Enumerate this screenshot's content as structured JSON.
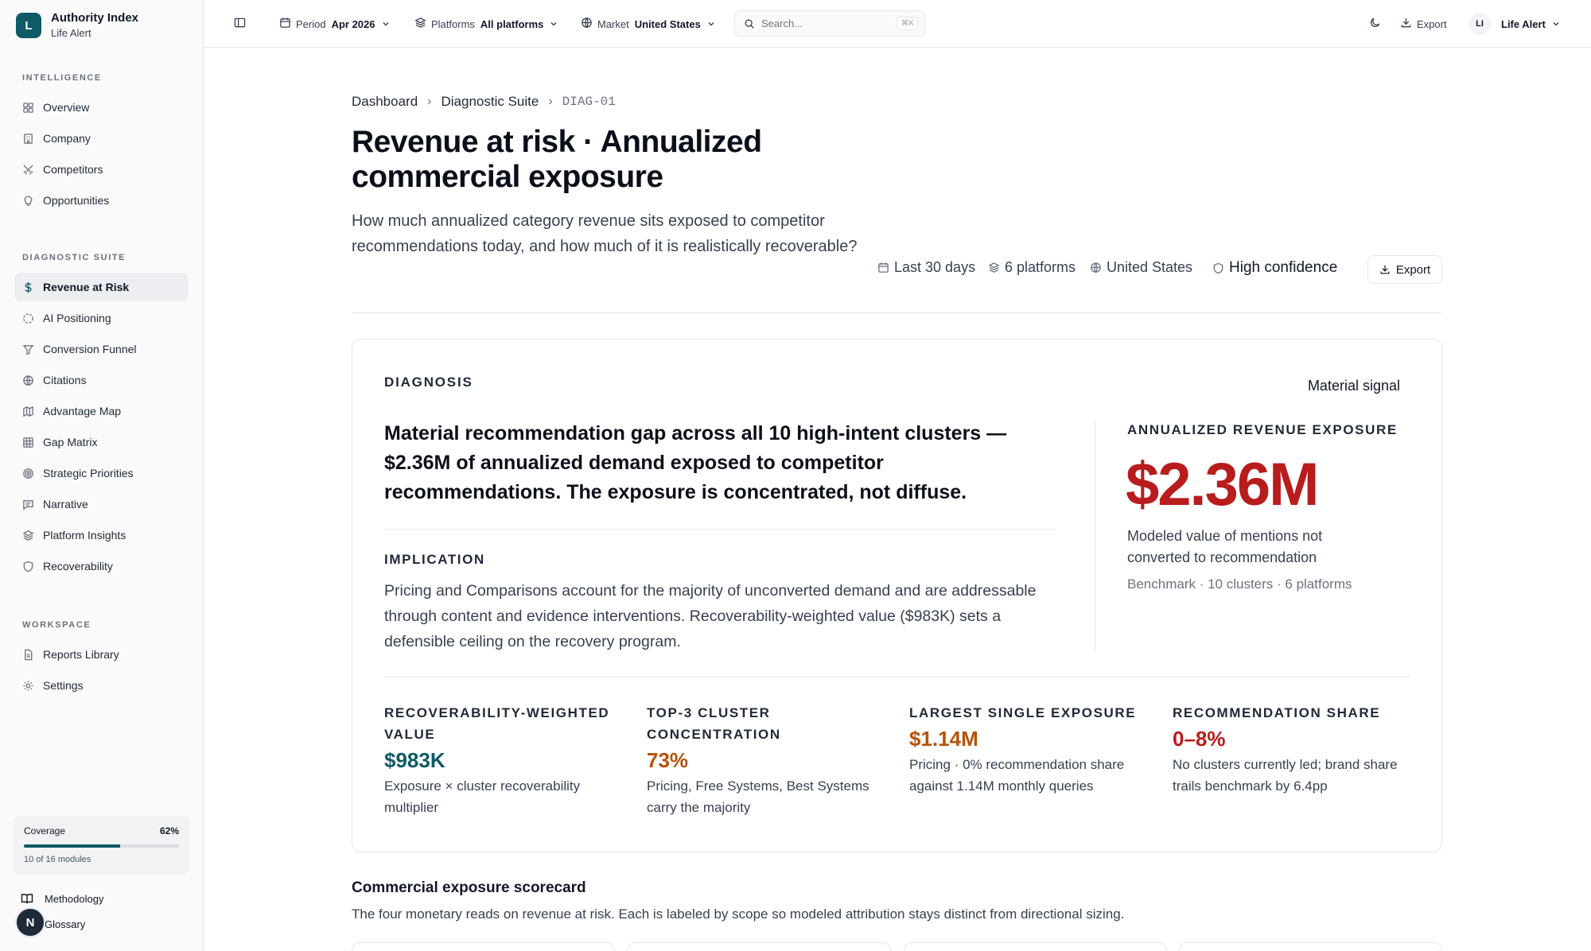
{
  "brand": {
    "logo_letter": "L",
    "title": "Authority Index",
    "subtitle": "Life Alert"
  },
  "sidebar": {
    "sections": [
      {
        "label": "INTELLIGENCE",
        "items": [
          {
            "label": "Overview",
            "icon": "grid-icon"
          },
          {
            "label": "Company",
            "icon": "building-icon"
          },
          {
            "label": "Competitors",
            "icon": "swords-icon"
          },
          {
            "label": "Opportunities",
            "icon": "lightbulb-icon"
          }
        ]
      },
      {
        "label": "DIAGNOSTIC SUITE",
        "items": [
          {
            "label": "Revenue at Risk",
            "icon": "dollar-icon",
            "active": true
          },
          {
            "label": "AI Positioning",
            "icon": "circle-dashed-icon"
          },
          {
            "label": "Conversion Funnel",
            "icon": "funnel-icon"
          },
          {
            "label": "Citations",
            "icon": "globe-icon"
          },
          {
            "label": "Advantage Map",
            "icon": "map-icon"
          },
          {
            "label": "Gap Matrix",
            "icon": "table-grid-icon"
          },
          {
            "label": "Strategic Priorities",
            "icon": "target-icon"
          },
          {
            "label": "Narrative",
            "icon": "message-square-icon"
          },
          {
            "label": "Platform Insights",
            "icon": "layers-icon"
          },
          {
            "label": "Recoverability",
            "icon": "shield-icon"
          }
        ]
      },
      {
        "label": "WORKSPACE",
        "items": [
          {
            "label": "Reports Library",
            "icon": "file-icon"
          },
          {
            "label": "Settings",
            "icon": "gear-icon"
          }
        ]
      }
    ],
    "coverage": {
      "label": "Coverage",
      "percent_label": "62%",
      "fraction": 0.62,
      "note": "10 of 16 modules"
    },
    "footer": {
      "methodology": "Methodology",
      "glossary": "Glossary",
      "avatar_letter": "N"
    }
  },
  "topbar": {
    "period": {
      "label": "Period",
      "value": "Apr 2026"
    },
    "platforms": {
      "label": "Platforms",
      "value": "All platforms"
    },
    "market": {
      "label": "Market",
      "value": "United States"
    },
    "search": {
      "placeholder": "Search...",
      "shortcut": "⌘K"
    },
    "export_label": "Export",
    "user": {
      "initials": "LI",
      "name": "Life Alert"
    }
  },
  "breadcrumb": {
    "items": [
      "Dashboard",
      "Diagnostic Suite"
    ],
    "code": "DIAG-01"
  },
  "page": {
    "title": "Revenue at risk · Annualized commercial exposure",
    "description": "How much annualized category revenue sits exposed to competitor recommendations today, and how much of it is realistically recoverable?",
    "meta": {
      "range": "Last 30 days",
      "platforms": "6 platforms",
      "market": "United States",
      "confidence": "High confidence"
    },
    "export_label": "Export"
  },
  "diagnosis": {
    "label": "DIAGNOSIS",
    "signal": "Material signal",
    "headline": "Material recommendation gap across all 10 high-intent clusters — $2.36M of annualized demand exposed to competitor recommendations. The exposure is concentrated, not diffuse.",
    "implication_label": "IMPLICATION",
    "implication_text": "Pricing and Comparisons account for the majority of unconverted demand and are addressable through content and evidence interventions. Recoverability-weighted value ($983K) sets a defensible ceiling on the recovery program.",
    "exposure": {
      "label": "ANNUALIZED REVENUE EXPOSURE",
      "value": "$2.36M",
      "description": "Modeled value of mentions not converted to recommendation",
      "benchmark": "Benchmark · 10 clusters · 6 platforms",
      "color": "#b91c1c"
    },
    "kpis": [
      {
        "label": "RECOVERABILITY-WEIGHTED VALUE",
        "value": "$983K",
        "note": "Exposure × cluster recoverability multiplier",
        "color": "#0f5a66"
      },
      {
        "label": "TOP-3 CLUSTER CONCENTRATION",
        "value": "73%",
        "note": "Pricing, Free Systems, Best Systems carry the majority",
        "color": "#b45309"
      },
      {
        "label": "LARGEST SINGLE EXPOSURE",
        "value": "$1.14M",
        "note": "Pricing · 0% recommendation share against 1.14M monthly queries",
        "color": "#b45309"
      },
      {
        "label": "RECOMMENDATION SHARE",
        "value": "0–8%",
        "note": "No clusters currently led; brand share trails benchmark by 6.4pp",
        "color": "#b91c1c"
      }
    ]
  },
  "scorecard": {
    "title": "Commercial exposure scorecard",
    "description": "The four monetary reads on revenue at risk. Each is labeled by scope so modeled attribution stays distinct from directional sizing."
  }
}
